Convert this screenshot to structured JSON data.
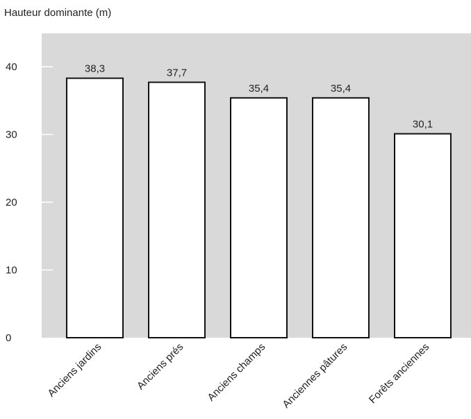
{
  "chart_data": {
    "type": "bar",
    "title": "",
    "ylabel": "Hauteur dominante (m)",
    "xlabel": "",
    "categories": [
      "Anciens jardins",
      "Anciens prés",
      "Anciens champs",
      "Anciennes pâtures",
      "Forêts anciennes"
    ],
    "values": [
      38.3,
      37.7,
      35.4,
      35.4,
      30.1
    ],
    "value_labels": [
      "38,3",
      "37,7",
      "35,4",
      "35,4",
      "30,1"
    ],
    "ylim": [
      0,
      44
    ],
    "yticks": [
      0,
      10,
      20,
      30,
      40
    ],
    "grid": false,
    "legend": "none",
    "colors": {
      "plot_background": "#d9d9d9",
      "bar_fill": "#ffffff",
      "bar_stroke": "#111111",
      "text": "#222222"
    }
  }
}
